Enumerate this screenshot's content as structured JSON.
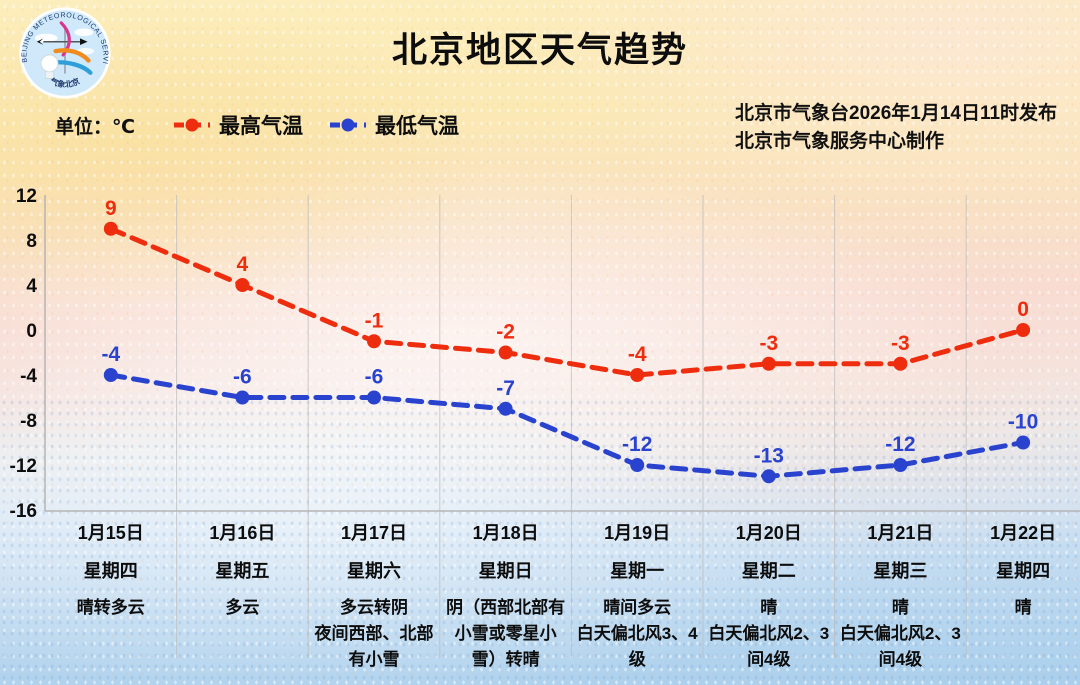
{
  "title": "北京地区天气趋势",
  "unit_label": "单位：℃",
  "issue": {
    "line1": "北京市气象台2026年1月14日11时发布",
    "line2": "北京市气象服务中心制作"
  },
  "logo": {
    "text_top": "BEIJING METEOROLOGICAL SERVICE",
    "text_bottom": "气象北京"
  },
  "colors": {
    "high": "#ee2d0e",
    "low": "#2a43cf",
    "axis": "#b5b5b5",
    "grid": "#bdbdbd",
    "text": "#0d0d0d"
  },
  "chart_data": {
    "type": "line",
    "title": "北京地区天气趋势",
    "unit": "℃",
    "categories": [
      "1月15日",
      "1月16日",
      "1月17日",
      "1月18日",
      "1月19日",
      "1月20日",
      "1月21日",
      "1月22日"
    ],
    "weekdays": [
      "星期四",
      "星期五",
      "星期六",
      "星期日",
      "星期一",
      "星期二",
      "星期三",
      "星期四"
    ],
    "weather": [
      [
        "晴转多云"
      ],
      [
        "多云"
      ],
      [
        "多云转阴",
        "夜间西部、北部",
        "有小雪"
      ],
      [
        "阴（西部北部有",
        "小雪或零星小",
        "雪）转晴"
      ],
      [
        "晴间多云",
        "白天偏北风3、4",
        "级"
      ],
      [
        "晴",
        "白天偏北风2、3",
        "间4级"
      ],
      [
        "晴",
        "白天偏北风2、3",
        "间4级"
      ],
      [
        "晴"
      ]
    ],
    "series": [
      {
        "name": "最高气温",
        "color": "#ee2d0e",
        "values": [
          9,
          4,
          -1,
          -2,
          -4,
          -3,
          -3,
          0
        ]
      },
      {
        "name": "最低气温",
        "color": "#2a43cf",
        "values": [
          -4,
          -6,
          -6,
          -7,
          -12,
          -13,
          -12,
          -10
        ]
      }
    ],
    "yticks": [
      12,
      8,
      4,
      0,
      -4,
      -8,
      -12,
      -16
    ],
    "ylim": [
      -16,
      12
    ],
    "grid": "vertical-only",
    "legend_position": "top-left",
    "xlabel": "",
    "ylabel": ""
  }
}
